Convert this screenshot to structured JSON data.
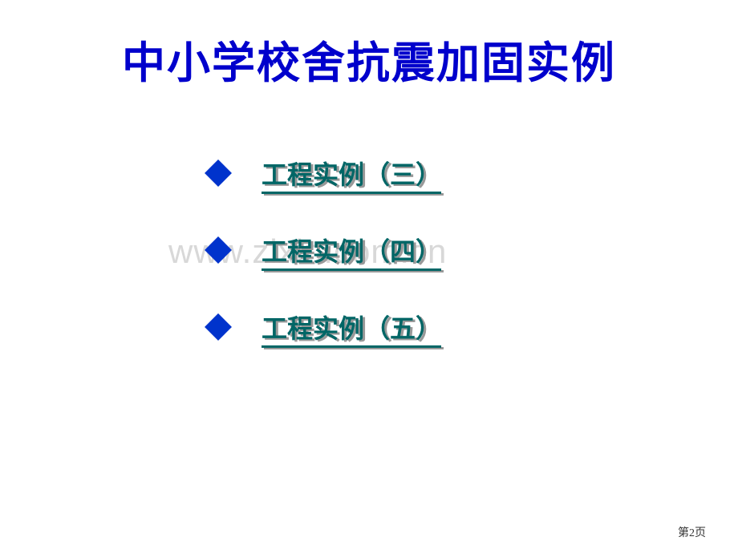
{
  "title": "中小学校舍抗震加固实例",
  "watermark": "www.zixin.com.cn",
  "pageNumber": "第2页",
  "items": [
    {
      "label": "工程实例（三）",
      "color": "#006666",
      "bulletColor": "#0033cc"
    },
    {
      "label": "工程实例（四）",
      "color": "#006666",
      "bulletColor": "#0033cc"
    },
    {
      "label": "工程实例（五）",
      "color": "#006666",
      "bulletColor": "#0033cc"
    }
  ]
}
